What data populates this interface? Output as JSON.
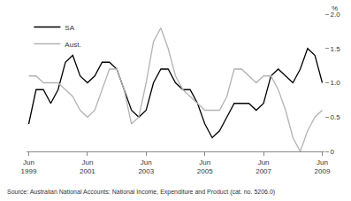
{
  "chart_data": {
    "type": "line",
    "y_label": "%",
    "source": "Source: Australian National Accounts: National Income, Expenditure and Product (cat. no. 5206.0)",
    "categories": [
      "Jun 1999",
      null,
      null,
      null,
      null,
      null,
      null,
      null,
      "Jun 2001",
      null,
      null,
      null,
      null,
      null,
      null,
      null,
      "Jun 2003",
      null,
      null,
      null,
      null,
      null,
      null,
      null,
      "Jun 2005",
      null,
      null,
      null,
      null,
      null,
      null,
      null,
      "Jun 2007",
      null,
      null,
      null,
      null,
      null,
      null,
      null,
      "Jun 2009"
    ],
    "series": [
      {
        "name": "SA",
        "color": "#000000",
        "values": [
          0.4,
          0.9,
          0.9,
          0.7,
          0.9,
          1.3,
          1.4,
          1.1,
          1.0,
          1.1,
          1.3,
          1.3,
          1.2,
          0.9,
          0.6,
          0.5,
          0.6,
          1.0,
          1.2,
          1.2,
          1.0,
          0.9,
          0.9,
          0.7,
          0.4,
          0.2,
          0.3,
          0.5,
          0.7,
          0.7,
          0.7,
          0.6,
          0.7,
          1.1,
          1.2,
          1.1,
          1.0,
          1.2,
          1.5,
          1.4,
          1.0
        ]
      },
      {
        "name": "Aust.",
        "color": "#b3b3b3",
        "values": [
          1.1,
          1.1,
          1.0,
          1.0,
          1.0,
          0.9,
          0.8,
          0.6,
          0.5,
          0.6,
          0.9,
          1.2,
          1.2,
          0.9,
          0.4,
          0.5,
          1.0,
          1.6,
          1.8,
          1.5,
          1.1,
          0.9,
          0.8,
          0.7,
          0.6,
          0.6,
          0.6,
          0.8,
          1.2,
          1.2,
          1.1,
          1.0,
          1.1,
          1.1,
          0.9,
          0.6,
          0.2,
          0.0,
          0.3,
          0.5,
          0.6
        ]
      }
    ],
    "ylim": [
      0,
      2
    ],
    "yticks": [
      0,
      0.5,
      {
        "value": 1,
        "label": "1.0"
      },
      1.5,
      {
        "value": 2,
        "label": "2.0"
      }
    ],
    "legend": "top-left",
    "grid": false
  }
}
